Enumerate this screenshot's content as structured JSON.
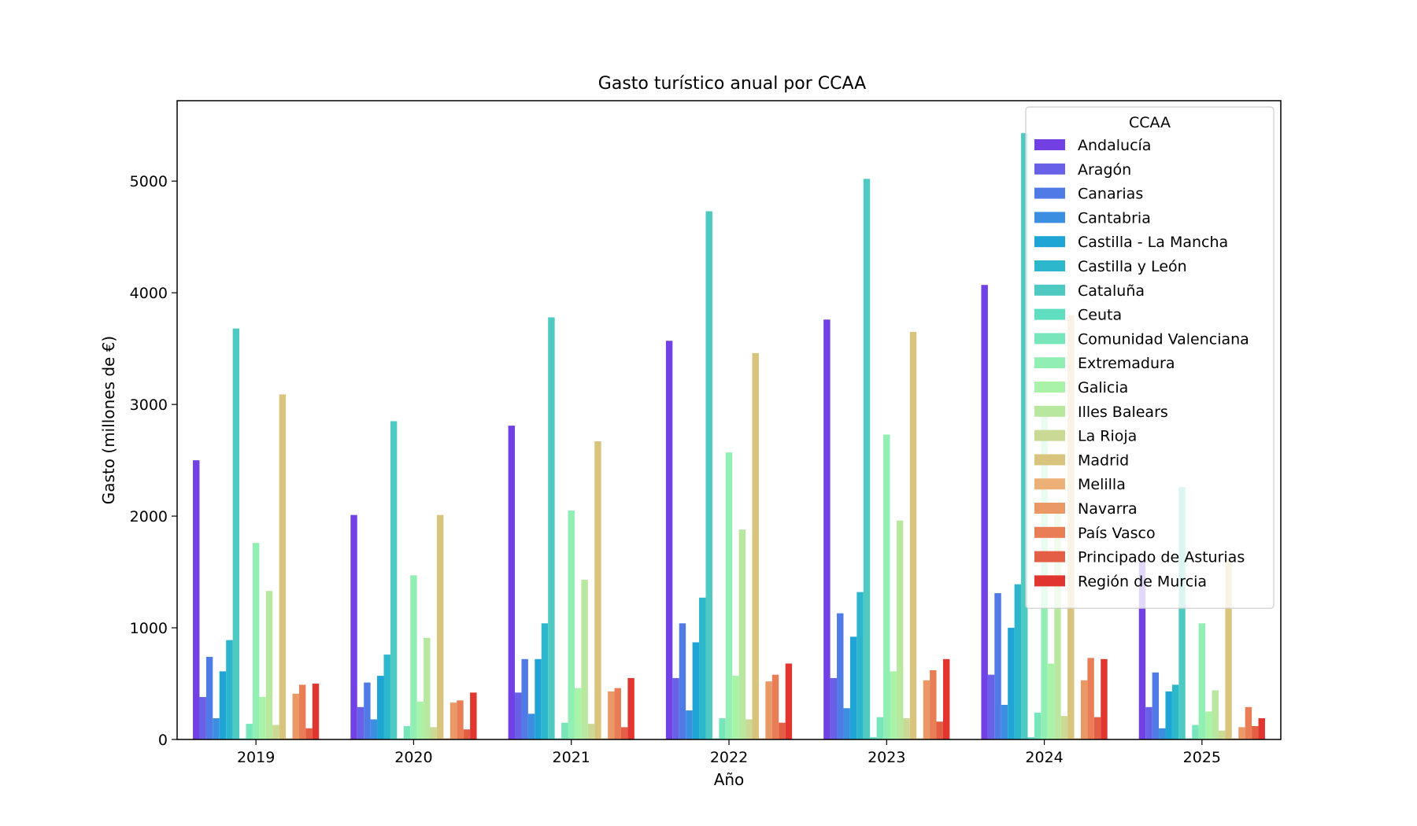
{
  "chart_data": {
    "type": "bar",
    "title": "Gasto turístico anual por CCAA",
    "xlabel": "Año",
    "ylabel": "Gasto (millones de €)",
    "ylim": [
      0,
      5720
    ],
    "yticks": [
      0,
      1000,
      2000,
      3000,
      4000,
      5000
    ],
    "grid": false,
    "legend_title": "CCAA",
    "legend_position": "top-right",
    "categories": [
      "2019",
      "2020",
      "2021",
      "2022",
      "2023",
      "2024",
      "2025"
    ],
    "series": [
      {
        "name": "Andalucía",
        "color": "#7141e6",
        "values": [
          2500,
          2010,
          2810,
          3570,
          3760,
          4070,
          1600
        ]
      },
      {
        "name": "Aragón",
        "color": "#6861e8",
        "values": [
          380,
          290,
          420,
          550,
          550,
          580,
          290
        ]
      },
      {
        "name": "Canarias",
        "color": "#507ae5",
        "values": [
          740,
          510,
          720,
          1040,
          1130,
          1310,
          600
        ]
      },
      {
        "name": "Cantabria",
        "color": "#3c8fe0",
        "values": [
          190,
          180,
          230,
          260,
          280,
          310,
          100
        ]
      },
      {
        "name": "Castilla - La Mancha",
        "color": "#1ea5d6",
        "values": [
          610,
          570,
          720,
          870,
          920,
          1000,
          430
        ]
      },
      {
        "name": "Castilla y León",
        "color": "#2db7cc",
        "values": [
          890,
          760,
          1040,
          1270,
          1320,
          1390,
          490
        ]
      },
      {
        "name": "Cataluña",
        "color": "#4ecac3",
        "values": [
          3680,
          2850,
          3780,
          4730,
          5020,
          5430,
          2260
        ]
      },
      {
        "name": "Ceuta",
        "color": "#5fdec0",
        "values": [
          10,
          10,
          10,
          10,
          20,
          20,
          10
        ]
      },
      {
        "name": "Comunidad Valenciana",
        "color": "#77e7bb",
        "values": [
          140,
          120,
          150,
          190,
          200,
          240,
          130
        ]
      },
      {
        "name": "Extremadura",
        "color": "#91efb3",
        "values": [
          1760,
          1470,
          2050,
          2570,
          2730,
          2890,
          1040
        ]
      },
      {
        "name": "Galicia",
        "color": "#a8f3a8",
        "values": [
          380,
          340,
          460,
          570,
          610,
          680,
          250
        ]
      },
      {
        "name": "Illes Balears",
        "color": "#b8e8a0",
        "values": [
          1330,
          910,
          1430,
          1880,
          1960,
          2120,
          440
        ]
      },
      {
        "name": "La Rioja",
        "color": "#cad994",
        "values": [
          130,
          110,
          140,
          180,
          190,
          210,
          80
        ]
      },
      {
        "name": "Madrid",
        "color": "#d9c47e",
        "values": [
          3090,
          2010,
          2670,
          3460,
          3650,
          3800,
          1610
        ]
      },
      {
        "name": "Melilla",
        "color": "#ecaf76",
        "values": [
          10,
          10,
          10,
          10,
          10,
          10,
          10
        ]
      },
      {
        "name": "Navarra",
        "color": "#ea9866",
        "values": [
          410,
          330,
          430,
          520,
          530,
          530,
          110
        ]
      },
      {
        "name": "País Vasco",
        "color": "#e97e56",
        "values": [
          490,
          350,
          460,
          580,
          620,
          730,
          290
        ]
      },
      {
        "name": "Principado de Asturias",
        "color": "#e35e44",
        "values": [
          100,
          90,
          110,
          150,
          160,
          200,
          120
        ]
      },
      {
        "name": "Región de Murcia",
        "color": "#e0362f",
        "values": [
          500,
          420,
          550,
          680,
          720,
          720,
          190
        ]
      }
    ]
  }
}
